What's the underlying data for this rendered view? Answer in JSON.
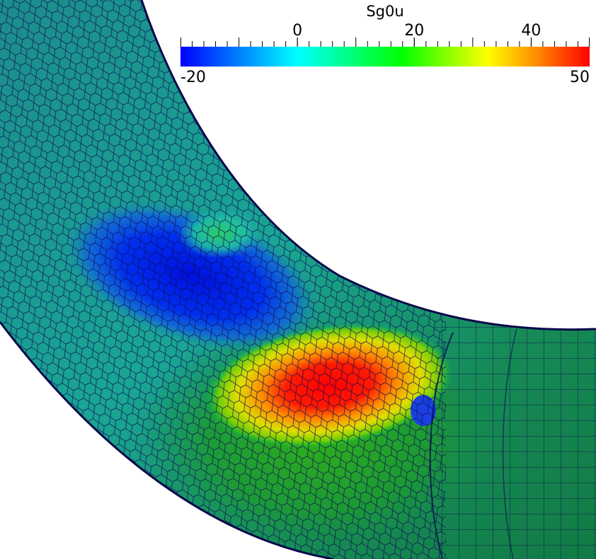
{
  "colorbar": {
    "title": "Sg0u",
    "min_label": "-20",
    "max_label": "50",
    "range": [
      -20,
      50
    ],
    "tick_labels": [
      "0",
      "20",
      "40"
    ],
    "tick_values": [
      0,
      20,
      40
    ],
    "colormap": [
      "#0000ff",
      "#00ffff",
      "#00ff00",
      "#ffff00",
      "#ff8c00",
      "#ff0000"
    ]
  },
  "scene": {
    "mesh_line_color": "#0a0a55",
    "pipe_base_color": "#1a9a88",
    "high_region_color": "#ff0000",
    "low_region_color": "#0018e0"
  }
}
